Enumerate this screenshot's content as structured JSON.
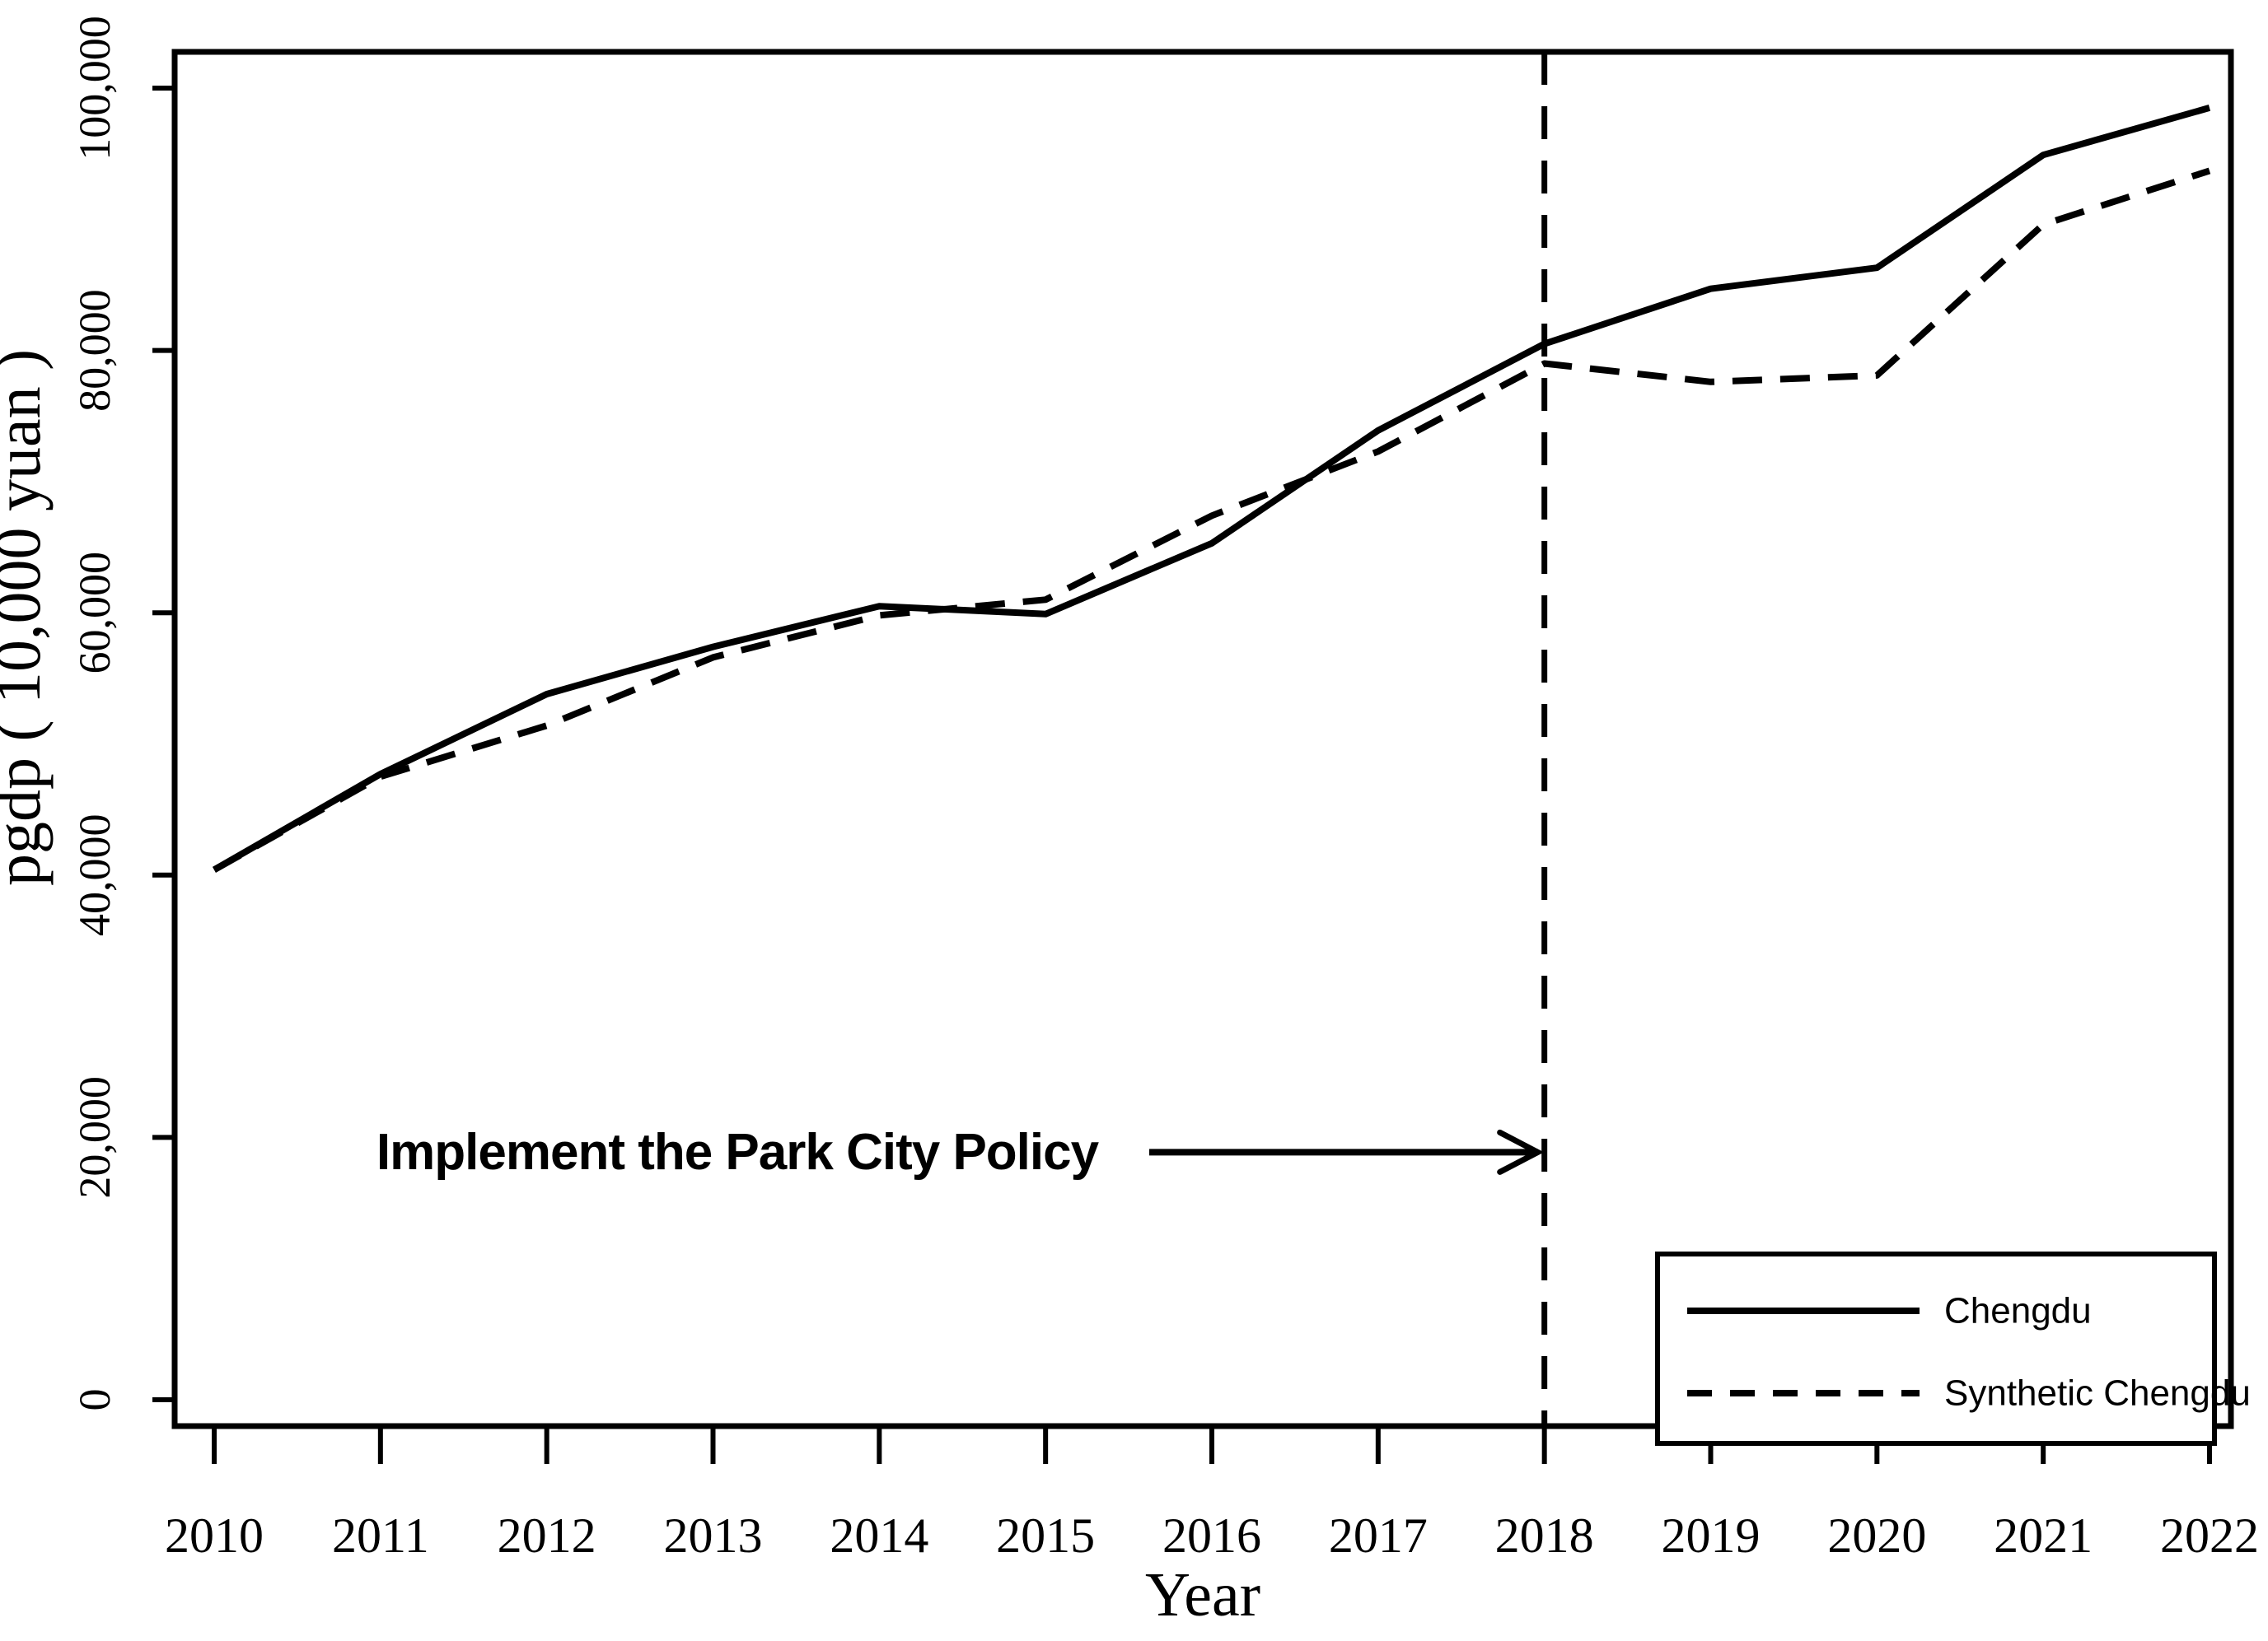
{
  "chart_data": {
    "type": "line",
    "title": "",
    "xlabel": "Year",
    "ylabel": "pgdp ( 10,000 yuan )",
    "x": [
      2010,
      2011,
      2012,
      2013,
      2014,
      2015,
      2016,
      2017,
      2018,
      2019,
      2020,
      2021,
      2022
    ],
    "x_labels": [
      "2010",
      "2011",
      "2012",
      "2013",
      "2014",
      "2015",
      "2016",
      "2017",
      "2018",
      "2019",
      "2020",
      "2021",
      "2022"
    ],
    "y_ticks": [
      {
        "value": 0,
        "label": "0"
      },
      {
        "value": 20000,
        "label": "20,000"
      },
      {
        "value": 40000,
        "label": "40,000"
      },
      {
        "value": 60000,
        "label": "60,000"
      },
      {
        "value": 80000,
        "label": "80,000"
      },
      {
        "value": 100000,
        "label": "100,000"
      }
    ],
    "ylim": [
      0,
      100000
    ],
    "grid": false,
    "legend_position": "bottom-right",
    "series": [
      {
        "name": "Chengdu",
        "style": "solid",
        "color": "#000000",
        "values": [
          40400,
          47700,
          53800,
          57400,
          60500,
          59900,
          65300,
          73900,
          80500,
          84700,
          86300,
          94900,
          98500
        ]
      },
      {
        "name": "Synthetic Chengdu",
        "style": "dashed",
        "color": "#000000",
        "values": [
          40400,
          47500,
          51400,
          56600,
          59800,
          61000,
          67400,
          72300,
          79000,
          77600,
          78100,
          89600,
          93700
        ]
      }
    ],
    "annotation": {
      "text": "Implement the Park City Policy",
      "points_to_year": 2018,
      "at_y_value": 20000
    },
    "policy_line": {
      "year": 2018,
      "style": "dashed"
    }
  },
  "colors": {
    "foreground": "#000000",
    "background": "#ffffff"
  }
}
